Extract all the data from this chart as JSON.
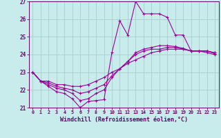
{
  "xlabel": "Windchill (Refroidissement éolien,°C)",
  "ylabel": "",
  "bg_color": "#c8ecec",
  "line_color": "#990099",
  "grid_color": "#aacccc",
  "axis_color": "#660066",
  "text_color": "#660066",
  "xlim": [
    -0.5,
    23.5
  ],
  "ylim": [
    21,
    27
  ],
  "yticks": [
    21,
    22,
    23,
    24,
    25,
    26,
    27
  ],
  "xticks": [
    0,
    1,
    2,
    3,
    4,
    5,
    6,
    7,
    8,
    9,
    10,
    11,
    12,
    13,
    14,
    15,
    16,
    17,
    18,
    19,
    20,
    21,
    22,
    23
  ],
  "xlabels": [
    "0",
    "1",
    "2",
    "3",
    "4",
    "5",
    "6",
    "7",
    "8",
    "9",
    "10",
    "11",
    "12",
    "13",
    "14",
    "15",
    "16",
    "17",
    "18",
    "19",
    "20",
    "21",
    "22",
    "23"
  ],
  "series": [
    [
      23.0,
      22.5,
      22.2,
      21.9,
      21.8,
      21.5,
      21.0,
      21.35,
      21.4,
      21.45,
      24.1,
      25.9,
      25.1,
      27.0,
      26.3,
      26.3,
      26.3,
      26.1,
      25.1,
      25.1,
      24.2,
      24.2,
      24.1,
      24.0
    ],
    [
      23.0,
      22.5,
      22.5,
      22.3,
      22.3,
      22.2,
      22.2,
      22.3,
      22.5,
      22.7,
      23.0,
      23.2,
      23.5,
      23.7,
      23.9,
      24.1,
      24.2,
      24.3,
      24.3,
      24.3,
      24.2,
      24.2,
      24.2,
      24.1
    ],
    [
      23.0,
      22.5,
      22.4,
      22.2,
      22.1,
      22.0,
      21.8,
      21.9,
      22.1,
      22.3,
      22.8,
      23.2,
      23.6,
      24.0,
      24.2,
      24.3,
      24.3,
      24.4,
      24.4,
      24.3,
      24.2,
      24.2,
      24.2,
      24.1
    ],
    [
      23.0,
      22.5,
      22.3,
      22.1,
      22.0,
      21.8,
      21.4,
      21.5,
      21.8,
      22.0,
      22.7,
      23.2,
      23.6,
      24.1,
      24.3,
      24.4,
      24.5,
      24.5,
      24.45,
      24.35,
      24.2,
      24.2,
      24.2,
      24.05
    ]
  ]
}
